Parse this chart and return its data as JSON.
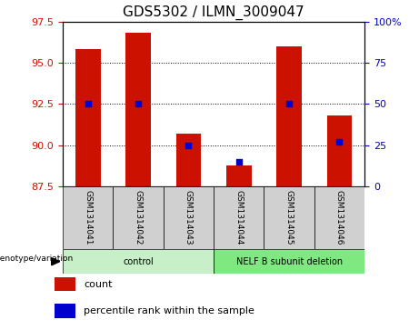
{
  "title": "GDS5302 / ILMN_3009047",
  "samples": [
    "GSM1314041",
    "GSM1314042",
    "GSM1314043",
    "GSM1314044",
    "GSM1314045",
    "GSM1314046"
  ],
  "count_values": [
    95.8,
    96.8,
    90.7,
    88.8,
    96.0,
    91.8
  ],
  "percentile_values": [
    50,
    50,
    25,
    15,
    50,
    27
  ],
  "ylim_left": [
    87.5,
    97.5
  ],
  "ylim_right": [
    0,
    100
  ],
  "yticks_left": [
    87.5,
    90.0,
    92.5,
    95.0,
    97.5
  ],
  "yticks_right": [
    0,
    25,
    50,
    75,
    100
  ],
  "grid_lines": [
    90.0,
    92.5,
    95.0
  ],
  "bar_color": "#cc1100",
  "marker_color": "#0000cc",
  "bar_bottom": 87.5,
  "groups": [
    {
      "label": "control",
      "indices": [
        0,
        1,
        2
      ],
      "color": "#c8f0c8"
    },
    {
      "label": "NELF B subunit deletion",
      "indices": [
        3,
        4,
        5
      ],
      "color": "#80e880"
    }
  ],
  "genotype_label": "genotype/variation",
  "legend_count_label": "count",
  "legend_percentile_label": "percentile rank within the sample",
  "bar_width": 0.5,
  "title_fontsize": 11,
  "tick_fontsize": 8,
  "label_fontsize": 8
}
